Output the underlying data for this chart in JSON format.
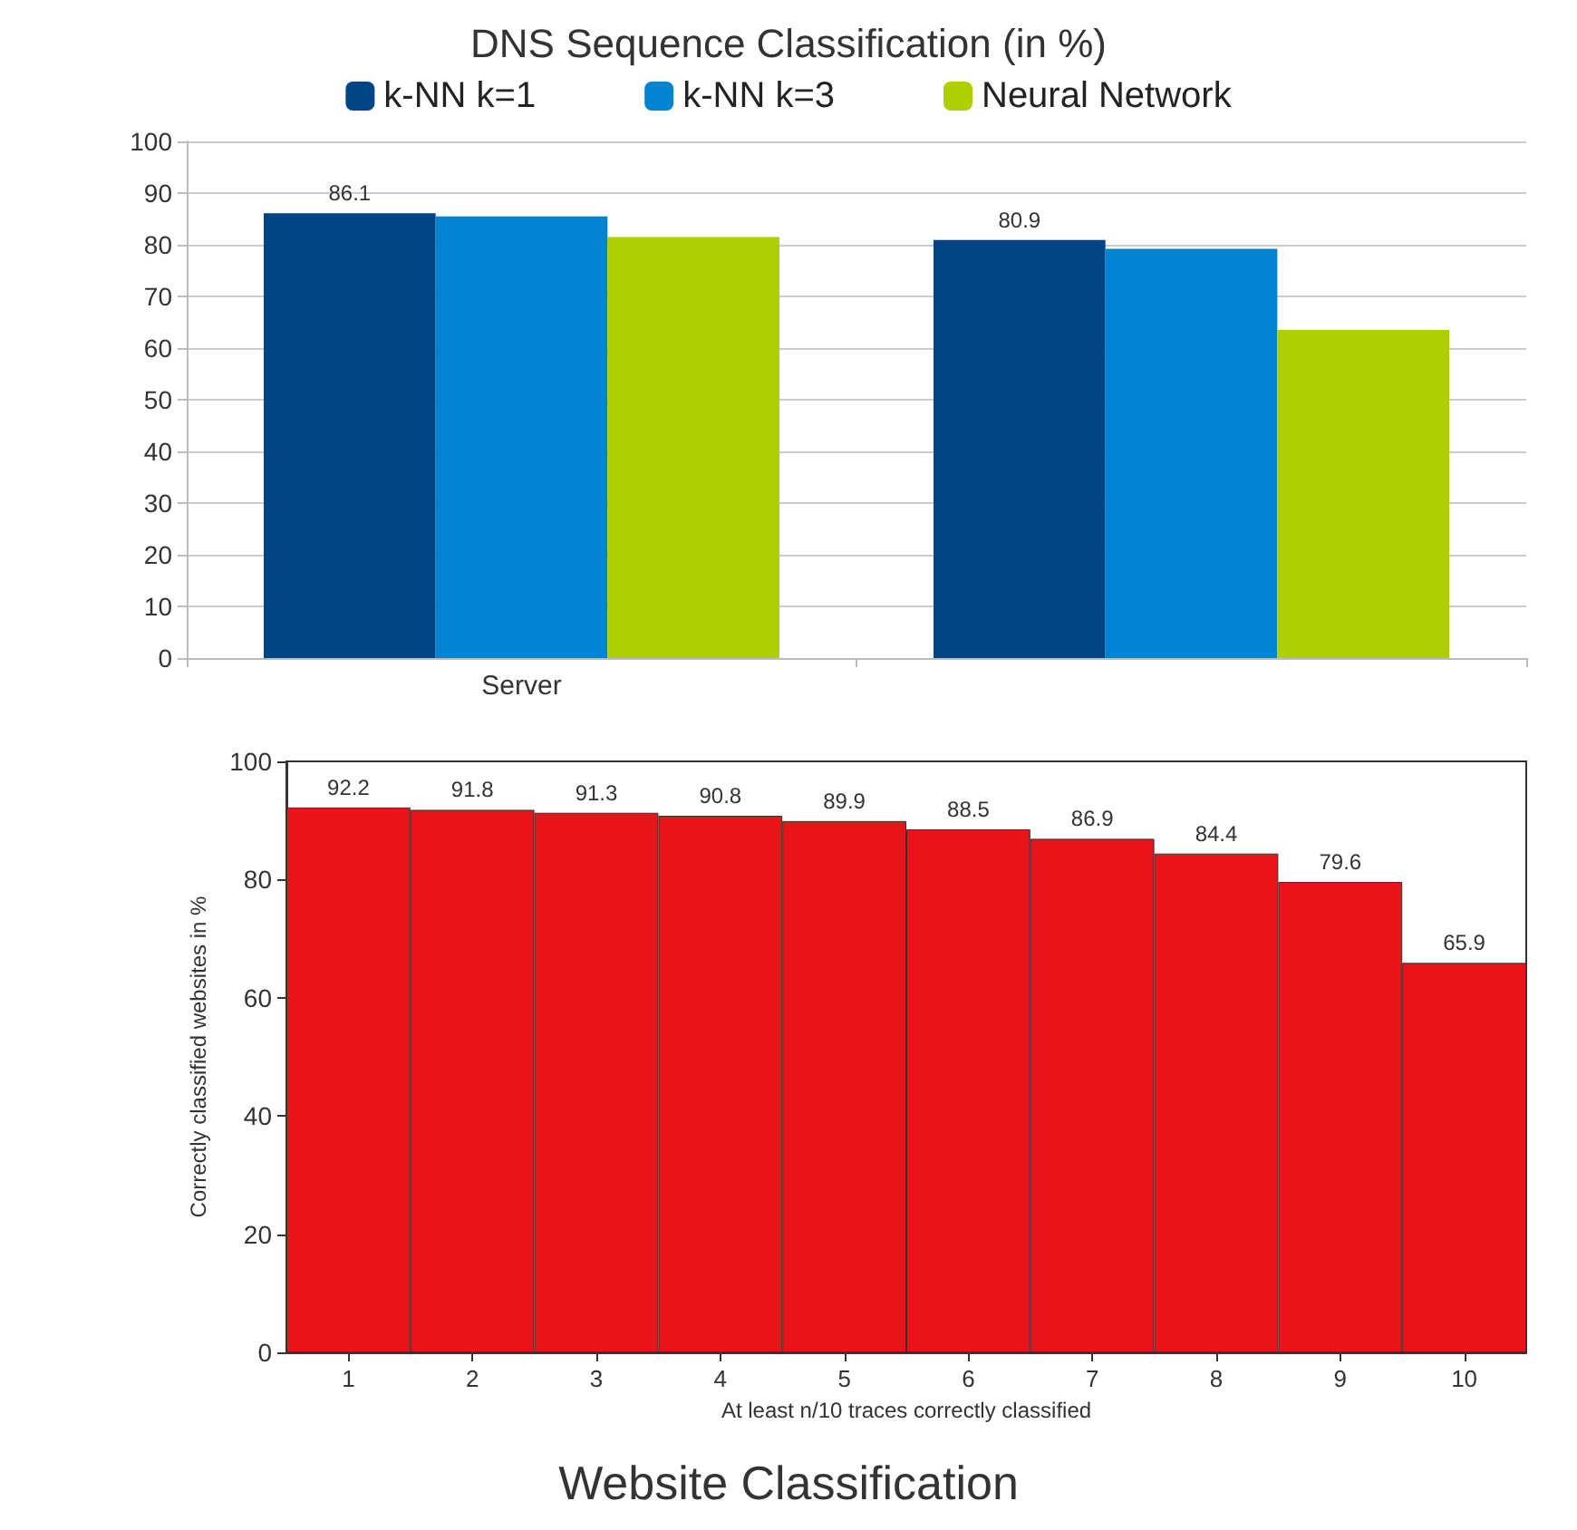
{
  "chart_data": [
    {
      "type": "bar",
      "title": "DNS Sequence Classification (in %)",
      "categories": [
        "Server",
        null
      ],
      "series": [
        {
          "name": "k-NN k=1",
          "color": "#004586",
          "values": [
            86.1,
            80.9
          ],
          "value_labels": [
            "86.1",
            "80.9"
          ]
        },
        {
          "name": "k-NN k=3",
          "color": "#0084d1",
          "values": [
            85.5,
            79.2
          ]
        },
        {
          "name": "Neural Network",
          "color": "#aecf00",
          "values": [
            81.5,
            63.5
          ]
        }
      ],
      "ylim": [
        0,
        100
      ],
      "yticks": [
        0,
        10,
        20,
        30,
        40,
        50,
        60,
        70,
        80,
        90,
        100
      ],
      "grid": "y",
      "legend": "top"
    },
    {
      "type": "bar",
      "title": "Website Classification",
      "xlabel": "At least n/10 traces correctly classified",
      "ylabel": "Correctly classified websites in %",
      "categories": [
        "1",
        "2",
        "3",
        "4",
        "5",
        "6",
        "7",
        "8",
        "9",
        "10"
      ],
      "values": [
        92.2,
        91.8,
        91.3,
        90.8,
        89.9,
        88.5,
        86.9,
        84.4,
        79.6,
        65.9
      ],
      "color": "#e8141a",
      "ylim": [
        0,
        100
      ],
      "yticks": [
        0,
        20,
        40,
        60,
        80,
        100
      ],
      "data_labels": true
    }
  ]
}
